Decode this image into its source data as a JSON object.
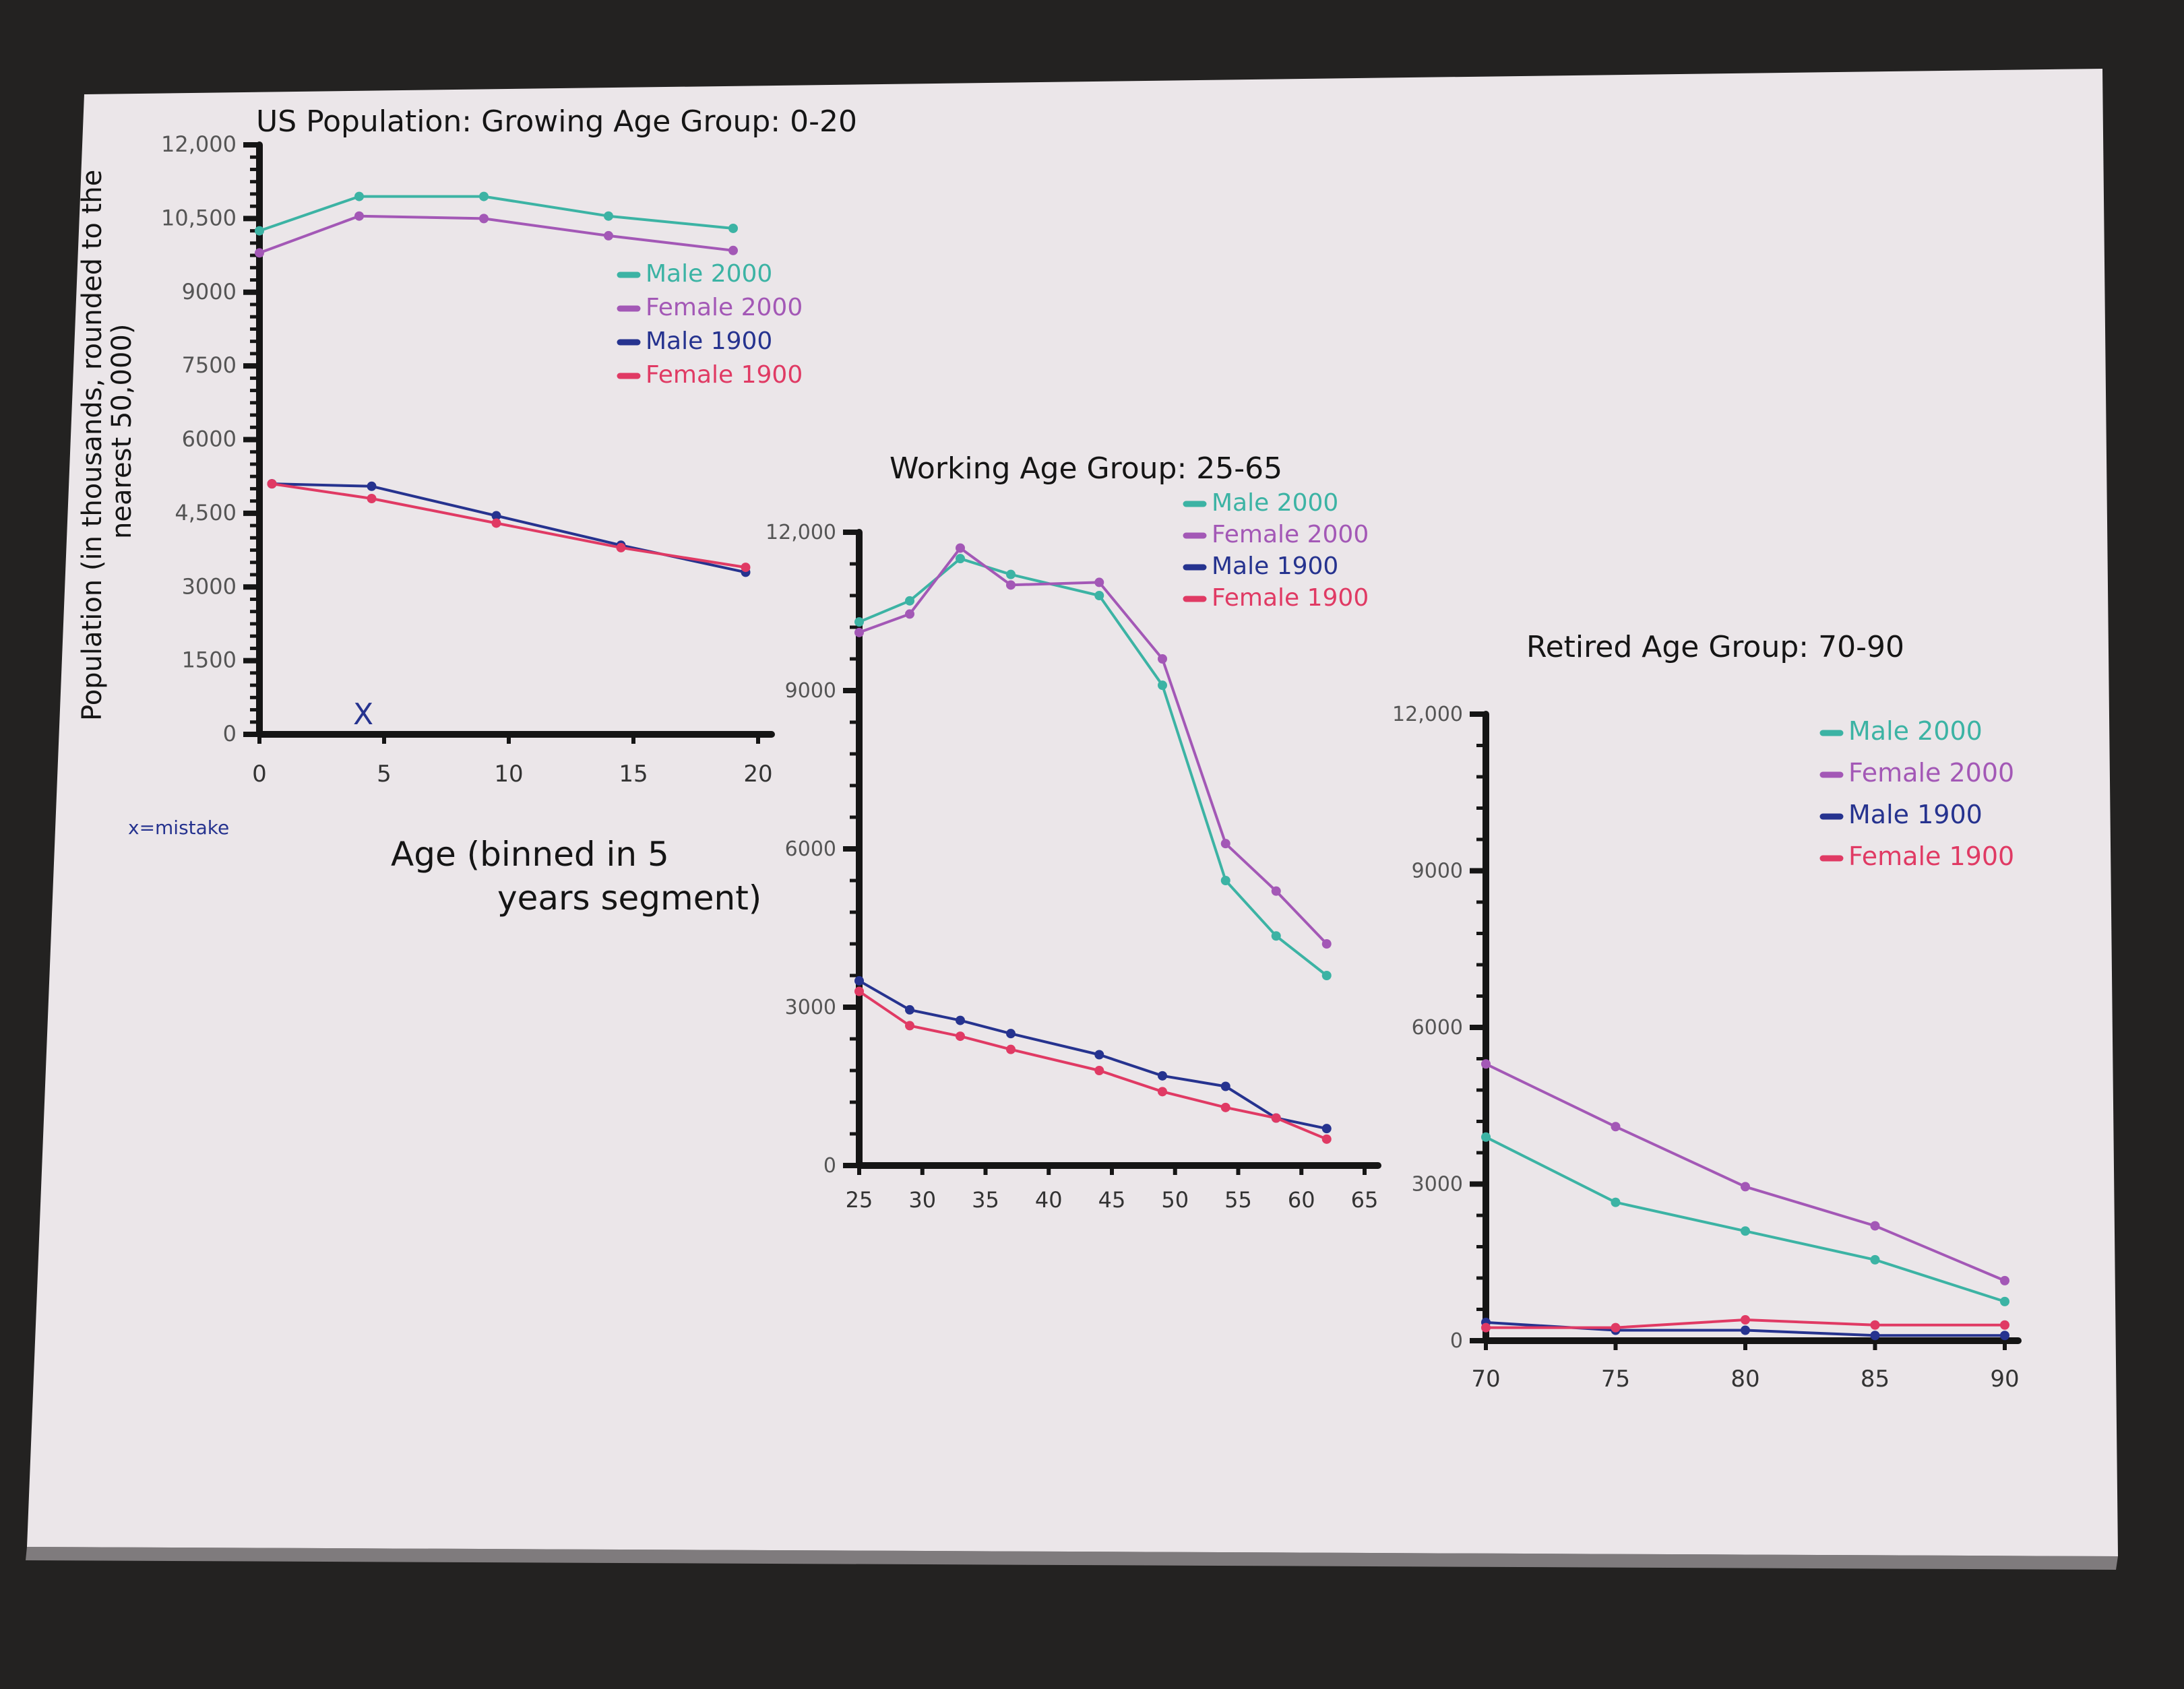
{
  "colors": {
    "male_2000": "#3cb3a4",
    "female_2000": "#a358b6",
    "male_1900": "#26338f",
    "female_1900": "#e03a64",
    "ink": "#151515",
    "paper": "#ebe6e9",
    "background": "#232221"
  },
  "y_axis_label": {
    "line1": "Population (in thousands, rounded to the",
    "line2": "nearest 50,000)"
  },
  "note": "x=mistake",
  "mistake_mark": "X",
  "x_axis_label": {
    "line1": "Age (binned in 5",
    "line2": "years segment)"
  },
  "chart_data": [
    {
      "type": "line",
      "title": "US Population: Growing Age Group: 0-20",
      "xlabel": "Age (binned in 5 years segment)",
      "ylabel": "Population (in thousands, rounded to the nearest 50,000)",
      "xlim": [
        0,
        20
      ],
      "ylim": [
        0,
        12000
      ],
      "x_ticks": [
        "0",
        "5",
        "10",
        "15",
        "20"
      ],
      "y_ticks": [
        "0",
        "1500",
        "3000",
        "4,500",
        "6000",
        "7500",
        "9000",
        "10,500",
        "12,000"
      ],
      "legend": [
        "Male 2000",
        "Female 2000",
        "Male 1900",
        "Female 1900"
      ],
      "legend_position": "right",
      "grid": false,
      "series": [
        {
          "name": "Male 2000",
          "x": [
            0,
            4,
            9,
            14,
            19
          ],
          "y": [
            10250,
            10950,
            10950,
            10550,
            10300
          ]
        },
        {
          "name": "Female 2000",
          "x": [
            0,
            4,
            9,
            14,
            19
          ],
          "y": [
            9800,
            10550,
            10500,
            10150,
            9850
          ]
        },
        {
          "name": "Male 1900",
          "x": [
            0.5,
            4.5,
            9.5,
            14.5,
            19.5
          ],
          "y": [
            5100,
            5050,
            4450,
            3850,
            3300
          ]
        },
        {
          "name": "Female 1900",
          "x": [
            0.5,
            4.5,
            9.5,
            14.5,
            19.5
          ],
          "y": [
            5100,
            4800,
            4300,
            3800,
            3400
          ]
        }
      ]
    },
    {
      "type": "line",
      "title": "Working Age Group: 25-65",
      "xlim": [
        25,
        65
      ],
      "ylim": [
        0,
        12000
      ],
      "x_ticks": [
        "25",
        "30",
        "35",
        "40",
        "45",
        "50",
        "55",
        "60",
        "65"
      ],
      "y_ticks": [
        "0",
        "3000",
        "6000",
        "9000",
        "12,000"
      ],
      "legend": [
        "Male 2000",
        "Female 2000",
        "Male 1900",
        "Female 1900"
      ],
      "legend_position": "top-right",
      "grid": false,
      "series": [
        {
          "name": "Male 2000",
          "x": [
            25,
            29,
            33,
            37,
            44,
            49,
            54,
            58,
            62
          ],
          "y": [
            10300,
            10700,
            11500,
            11200,
            10800,
            9100,
            5400,
            4350,
            3600
          ]
        },
        {
          "name": "Female 2000",
          "x": [
            25,
            29,
            33,
            37,
            44,
            49,
            54,
            58,
            62
          ],
          "y": [
            10100,
            10450,
            11700,
            11000,
            11050,
            9600,
            6100,
            5200,
            4200
          ]
        },
        {
          "name": "Male 1900",
          "x": [
            25,
            29,
            33,
            37,
            44,
            49,
            54,
            58,
            62
          ],
          "y": [
            3500,
            2950,
            2750,
            2500,
            2100,
            1700,
            1500,
            900,
            700
          ]
        },
        {
          "name": "Female 1900",
          "x": [
            25,
            29,
            33,
            37,
            44,
            49,
            54,
            58,
            62
          ],
          "y": [
            3300,
            2650,
            2450,
            2200,
            1800,
            1400,
            1100,
            900,
            500
          ]
        }
      ]
    },
    {
      "type": "line",
      "title": "Retired Age Group: 70-90",
      "xlim": [
        70,
        90
      ],
      "ylim": [
        0,
        12000
      ],
      "x_ticks": [
        "70",
        "75",
        "80",
        "85",
        "90"
      ],
      "y_ticks": [
        "0",
        "3000",
        "6000",
        "9000",
        "12,000"
      ],
      "legend": [
        "Male 2000",
        "Female 2000",
        "Male 1900",
        "Female 1900"
      ],
      "legend_position": "top-right",
      "grid": false,
      "series": [
        {
          "name": "Male 2000",
          "x": [
            70,
            75,
            80,
            85,
            90
          ],
          "y": [
            3900,
            2650,
            2100,
            1550,
            750
          ]
        },
        {
          "name": "Female 2000",
          "x": [
            70,
            75,
            80,
            85,
            90
          ],
          "y": [
            5300,
            4100,
            2950,
            2200,
            1150
          ]
        },
        {
          "name": "Male 1900",
          "x": [
            70,
            75,
            80,
            85,
            90
          ],
          "y": [
            350,
            200,
            200,
            100,
            100
          ]
        },
        {
          "name": "Female 1900",
          "x": [
            70,
            75,
            80,
            85,
            90
          ],
          "y": [
            250,
            250,
            400,
            300,
            300
          ]
        }
      ]
    }
  ]
}
